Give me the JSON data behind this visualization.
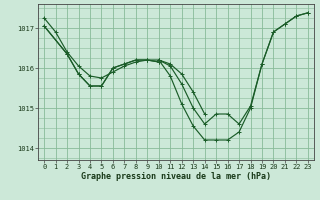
{
  "background_color": "#cce8d8",
  "grid_color": "#88bb99",
  "line_color": "#1a5c28",
  "marker_color": "#1a5c28",
  "xlabel": "Graphe pression niveau de la mer (hPa)",
  "xlabel_fontsize": 6.0,
  "tick_fontsize": 5.0,
  "ylim": [
    1013.7,
    1017.6
  ],
  "xlim": [
    -0.5,
    23.5
  ],
  "yticks": [
    1014,
    1015,
    1016,
    1017
  ],
  "xticks": [
    0,
    1,
    2,
    3,
    4,
    5,
    6,
    7,
    8,
    9,
    10,
    11,
    12,
    13,
    14,
    15,
    16,
    17,
    18,
    19,
    20,
    21,
    22,
    23
  ],
  "series": [
    {
      "x": [
        0,
        1,
        2,
        3,
        4,
        5,
        6,
        7,
        8,
        9,
        10,
        11,
        12,
        13,
        14,
        15,
        16,
        17,
        18,
        19,
        20,
        21,
        22,
        23
      ],
      "y": [
        1017.25,
        1016.9,
        1016.4,
        1016.05,
        1015.8,
        1015.75,
        1015.9,
        1016.05,
        1016.15,
        1016.2,
        1016.2,
        1015.8,
        1015.1,
        1014.55,
        1014.2,
        1014.2,
        1014.2,
        1014.4,
        1015.0,
        1016.1,
        1016.9,
        1017.1,
        1017.3,
        1017.38
      ]
    },
    {
      "x": [
        0,
        2,
        3,
        4,
        5,
        6,
        7,
        8,
        9,
        10
      ],
      "y": [
        1017.05,
        1016.35,
        1015.85,
        1015.55,
        1015.55,
        1016.0,
        1016.1,
        1016.2,
        1016.2,
        1016.15
      ]
    },
    {
      "x": [
        0,
        2,
        3,
        4,
        5,
        6,
        7,
        8,
        9,
        10
      ],
      "y": [
        1017.05,
        1016.35,
        1015.85,
        1015.55,
        1015.55,
        1016.0,
        1016.1,
        1016.2,
        1016.2,
        1016.15
      ]
    },
    {
      "x": [
        10,
        11,
        12,
        13,
        14
      ],
      "y": [
        1016.2,
        1016.1,
        1015.85,
        1015.4,
        1014.85
      ]
    },
    {
      "x": [
        10,
        11,
        12,
        13,
        14,
        15,
        16,
        17,
        18,
        19,
        20,
        21,
        22,
        23
      ],
      "y": [
        1016.2,
        1016.05,
        1015.6,
        1015.0,
        1014.6,
        1014.85,
        1014.85,
        1014.6,
        1015.05,
        1016.1,
        1016.9,
        1017.1,
        1017.3,
        1017.38
      ]
    }
  ]
}
